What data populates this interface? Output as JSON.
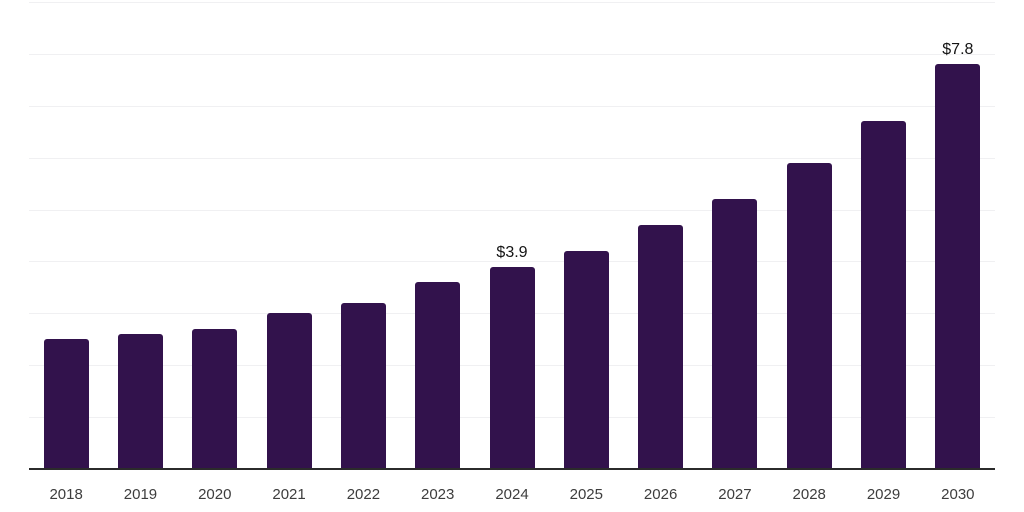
{
  "chart_data": {
    "type": "bar",
    "title": "",
    "xlabel": "",
    "ylabel": "",
    "categories": [
      "2018",
      "2019",
      "2020",
      "2021",
      "2022",
      "2023",
      "2024",
      "2025",
      "2026",
      "2027",
      "2028",
      "2029",
      "2030"
    ],
    "values": [
      2.5,
      2.6,
      2.7,
      3.0,
      3.2,
      3.6,
      3.9,
      4.2,
      4.7,
      5.2,
      5.9,
      6.7,
      7.8
    ],
    "data_labels": [
      "",
      "",
      "",
      "",
      "",
      "",
      "$3.9",
      "",
      "",
      "",
      "",
      "",
      "$7.8"
    ],
    "ylim": [
      0,
      9
    ],
    "gridline_step": 1,
    "grid_on": true,
    "legend": "none",
    "colors": {
      "bar": "#32124c",
      "axis": "#2b2b2b",
      "grid": "#f0f0f2",
      "data_label": "#141414",
      "tick_label": "#3d3d3d",
      "background": "#ffffff"
    }
  }
}
